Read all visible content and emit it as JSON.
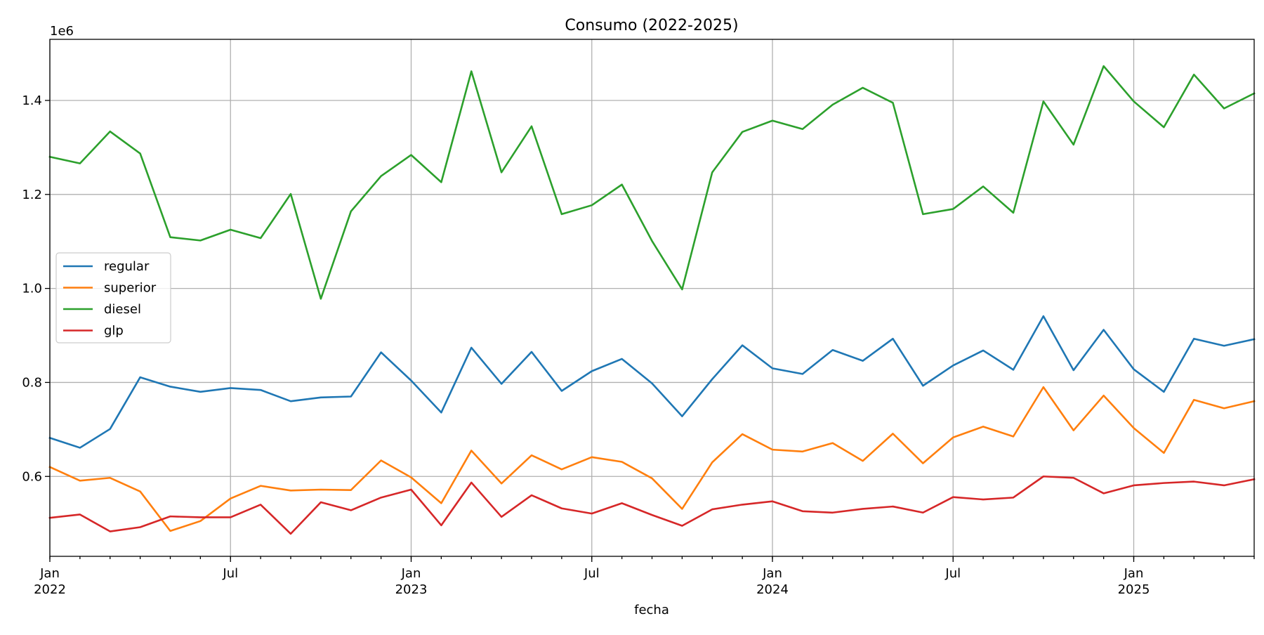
{
  "chart_data": {
    "type": "line",
    "title": "Consumo (2022-2025)",
    "xlabel": "fecha",
    "ylabel": "",
    "y_offset_label": "1e6",
    "ylim": [
      0.43,
      1.53
    ],
    "y_ticks": [
      0.6,
      0.8,
      1.0,
      1.2,
      1.4
    ],
    "y_tick_labels": [
      "0.6",
      "0.8",
      "1.0",
      "1.2",
      "1.4"
    ],
    "x": [
      "2022-01",
      "2022-02",
      "2022-03",
      "2022-04",
      "2022-05",
      "2022-06",
      "2022-07",
      "2022-08",
      "2022-09",
      "2022-10",
      "2022-11",
      "2022-12",
      "2023-01",
      "2023-02",
      "2023-03",
      "2023-04",
      "2023-05",
      "2023-06",
      "2023-07",
      "2023-08",
      "2023-09",
      "2023-10",
      "2023-11",
      "2023-12",
      "2024-01",
      "2024-02",
      "2024-03",
      "2024-04",
      "2024-05",
      "2024-06",
      "2024-07",
      "2024-08",
      "2024-09",
      "2024-10",
      "2024-11",
      "2024-12",
      "2025-01",
      "2025-02",
      "2025-03",
      "2025-04",
      "2025-05"
    ],
    "x_major_ticks": [
      {
        "x": "2022-01",
        "line1": "Jan",
        "line2": "2022"
      },
      {
        "x": "2022-07",
        "line1": "Jul",
        "line2": ""
      },
      {
        "x": "2023-01",
        "line1": "Jan",
        "line2": "2023"
      },
      {
        "x": "2023-07",
        "line1": "Jul",
        "line2": ""
      },
      {
        "x": "2024-01",
        "line1": "Jan",
        "line2": "2024"
      },
      {
        "x": "2024-07",
        "line1": "Jul",
        "line2": ""
      },
      {
        "x": "2025-01",
        "line1": "Jan",
        "line2": "2025"
      }
    ],
    "grid": true,
    "legend_position": "center-left",
    "series": [
      {
        "name": "regular",
        "color": "#1f77b4",
        "values": [
          0.682,
          0.661,
          0.701,
          0.811,
          0.791,
          0.78,
          0.788,
          0.784,
          0.76,
          0.768,
          0.77,
          0.864,
          0.804,
          0.736,
          0.874,
          0.797,
          0.865,
          0.782,
          0.824,
          0.85,
          0.798,
          0.728,
          0.807,
          0.879,
          0.83,
          0.818,
          0.869,
          0.846,
          0.893,
          0.793,
          0.836,
          0.868,
          0.827,
          0.941,
          0.826,
          0.912,
          0.828,
          0.78,
          0.893,
          0.878,
          0.892
        ]
      },
      {
        "name": "superior",
        "color": "#ff7f0e",
        "values": [
          0.62,
          0.591,
          0.597,
          0.568,
          0.484,
          0.505,
          0.553,
          0.58,
          0.57,
          0.572,
          0.571,
          0.634,
          0.598,
          0.543,
          0.655,
          0.585,
          0.645,
          0.615,
          0.641,
          0.631,
          0.596,
          0.531,
          0.63,
          0.69,
          0.657,
          0.653,
          0.671,
          0.633,
          0.691,
          0.628,
          0.683,
          0.706,
          0.685,
          0.79,
          0.698,
          0.772,
          0.703,
          0.65,
          0.763,
          0.745,
          0.76
        ]
      },
      {
        "name": "diesel",
        "color": "#2ca02c",
        "values": [
          1.28,
          1.266,
          1.334,
          1.287,
          1.109,
          1.102,
          1.125,
          1.107,
          1.201,
          0.978,
          1.164,
          1.239,
          1.284,
          1.226,
          1.462,
          1.247,
          1.345,
          1.158,
          1.177,
          1.221,
          1.101,
          0.998,
          1.247,
          1.333,
          1.357,
          1.339,
          1.391,
          1.427,
          1.395,
          1.158,
          1.169,
          1.217,
          1.161,
          1.398,
          1.306,
          1.473,
          1.398,
          1.343,
          1.455,
          1.383,
          1.415
        ]
      },
      {
        "name": "glp",
        "color": "#d62728",
        "values": [
          0.512,
          0.519,
          0.483,
          0.492,
          0.515,
          0.513,
          0.513,
          0.54,
          0.478,
          0.545,
          0.528,
          0.555,
          0.572,
          0.496,
          0.587,
          0.514,
          0.56,
          0.532,
          0.521,
          0.543,
          0.518,
          0.495,
          0.53,
          0.54,
          0.547,
          0.526,
          0.523,
          0.531,
          0.536,
          0.523,
          0.556,
          0.551,
          0.555,
          0.6,
          0.597,
          0.564,
          0.581,
          0.586,
          0.589,
          0.581,
          0.594
        ]
      }
    ]
  }
}
